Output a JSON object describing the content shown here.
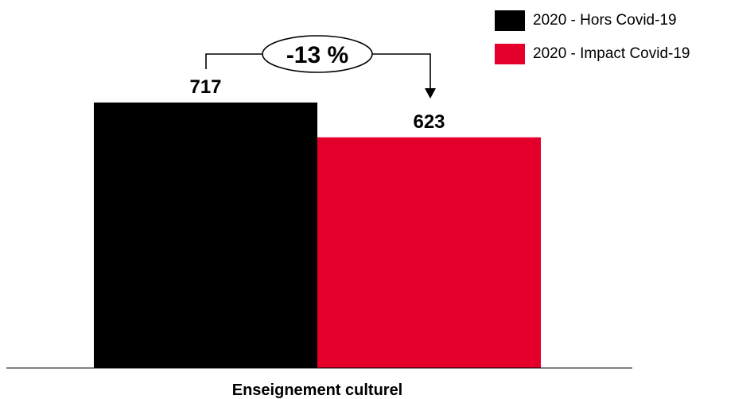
{
  "chart_data": {
    "type": "bar",
    "categories": [
      "Enseignement culturel"
    ],
    "series": [
      {
        "name": "2020 - Hors Covid-19",
        "values": [
          717
        ],
        "color": "#000000"
      },
      {
        "name": "2020 - Impact Covid-19",
        "values": [
          623
        ],
        "color": "#e4002b"
      }
    ],
    "data_labels": [
      "717",
      "623"
    ],
    "annotation": "-13 %",
    "legend_position": "top-right",
    "grid": false,
    "ylim": [
      0,
      717
    ]
  }
}
